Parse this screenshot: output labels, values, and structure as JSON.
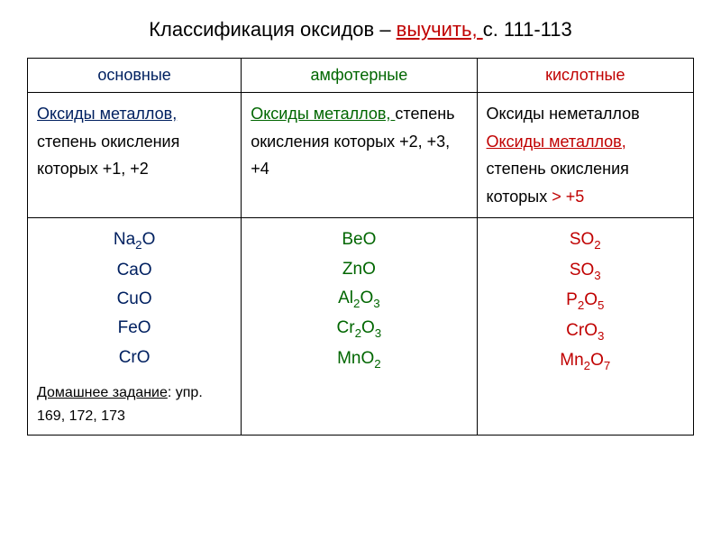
{
  "title_prefix": "Классификация оксидов – ",
  "title_learn": "выучить, ",
  "title_pages": "с. 111-113",
  "columns": {
    "basic": {
      "header": "основные",
      "color": "#002060"
    },
    "amphoteric": {
      "header": "амфотерные",
      "color": "#006600"
    },
    "acidic": {
      "header": "кислотные",
      "color": "#c00000"
    }
  },
  "descriptions": {
    "basic": {
      "link": "Оксиды металлов, ",
      "text": "степень окисления которых +1, +2"
    },
    "amphoteric": {
      "link": "Оксиды металлов, ",
      "text": "степень окисления которых +2, +3, +4"
    },
    "acidic": {
      "line1": "Оксиды неметаллов",
      "link": "Оксиды металлов, ",
      "text": "степень окисления которых ",
      "emph": "> +5"
    }
  },
  "examples": {
    "basic": [
      "Na₂O",
      "CaO",
      "CuO",
      "FeO",
      "CrO"
    ],
    "amphoteric": [
      "BeO",
      "ZnO",
      "Al₂O₃",
      "Cr₂O₃",
      "MnO₂"
    ],
    "acidic": [
      "SO₂",
      "SO₃",
      "P₂O₅",
      "CrO₃",
      "Mn₂O₇"
    ]
  },
  "homework": {
    "label": "Домашнее задание",
    "body": ": упр. 169, 172, 173"
  },
  "styling": {
    "background_color": "#ffffff",
    "border_color": "#000000",
    "title_fontsize": 22,
    "cell_fontsize": 18,
    "example_fontsize": 19,
    "hw_fontsize": 16,
    "font_family": "Arial"
  }
}
